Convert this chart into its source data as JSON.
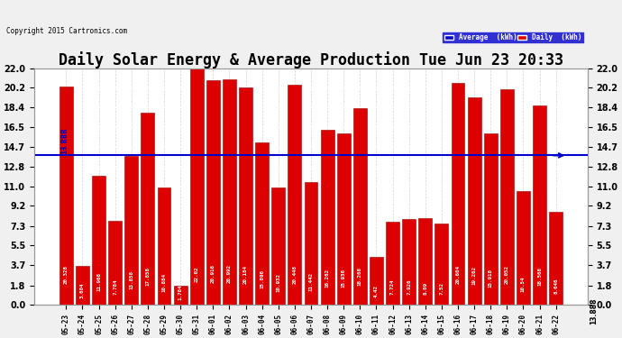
{
  "title": "Daily Solar Energy & Average Production Tue Jun 23 20:33",
  "copyright": "Copyright 2015 Cartronics.com",
  "average_value": 13.888,
  "categories": [
    "05-23",
    "05-24",
    "05-25",
    "05-26",
    "05-27",
    "05-28",
    "05-29",
    "05-30",
    "05-31",
    "06-01",
    "06-02",
    "06-03",
    "06-04",
    "06-05",
    "06-06",
    "06-07",
    "06-08",
    "06-09",
    "06-10",
    "06-11",
    "06-12",
    "06-13",
    "06-14",
    "06-15",
    "06-16",
    "06-17",
    "06-18",
    "06-19",
    "06-20",
    "06-21",
    "06-22"
  ],
  "values": [
    20.328,
    3.604,
    11.968,
    7.784,
    13.858,
    17.858,
    10.884,
    1.784,
    22.02,
    20.916,
    20.992,
    20.184,
    15.096,
    10.932,
    20.448,
    11.442,
    16.262,
    15.936,
    18.268,
    4.42,
    7.724,
    7.926,
    8.09,
    7.52,
    20.604,
    19.262,
    15.918,
    20.052,
    10.54,
    18.568,
    8.646
  ],
  "bar_color": "#dd0000",
  "average_line_color": "#0000cc",
  "background_color": "#f0f0f0",
  "plot_bg_color": "#ffffff",
  "grid_color": "#aaaaaa",
  "ylim": [
    0,
    22.0
  ],
  "yticks_left": [
    0.0,
    1.8,
    3.7,
    5.5,
    7.3,
    9.2,
    11.0,
    12.8,
    14.7,
    16.5,
    18.4,
    20.2,
    22.0
  ],
  "ytick_labels": [
    "0.0",
    "1.8",
    "3.7",
    "5.5",
    "7.3",
    "9.2",
    "11.0",
    "12.8",
    "14.7",
    "16.5",
    "18.4",
    "20.2",
    "22.0"
  ],
  "title_fontsize": 12,
  "legend_avg_label": "Average  (kWh)",
  "legend_daily_label": "Daily  (kWh)"
}
